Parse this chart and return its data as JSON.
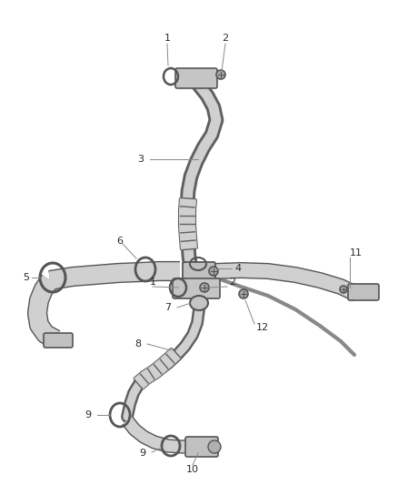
{
  "bg_color": "#ffffff",
  "line_color": "#4a4a4a",
  "label_color": "#2a2a2a",
  "tube_fill": "#d8d8d8",
  "tube_edge": "#5a5a5a",
  "figsize": [
    4.38,
    5.33
  ],
  "dpi": 100
}
